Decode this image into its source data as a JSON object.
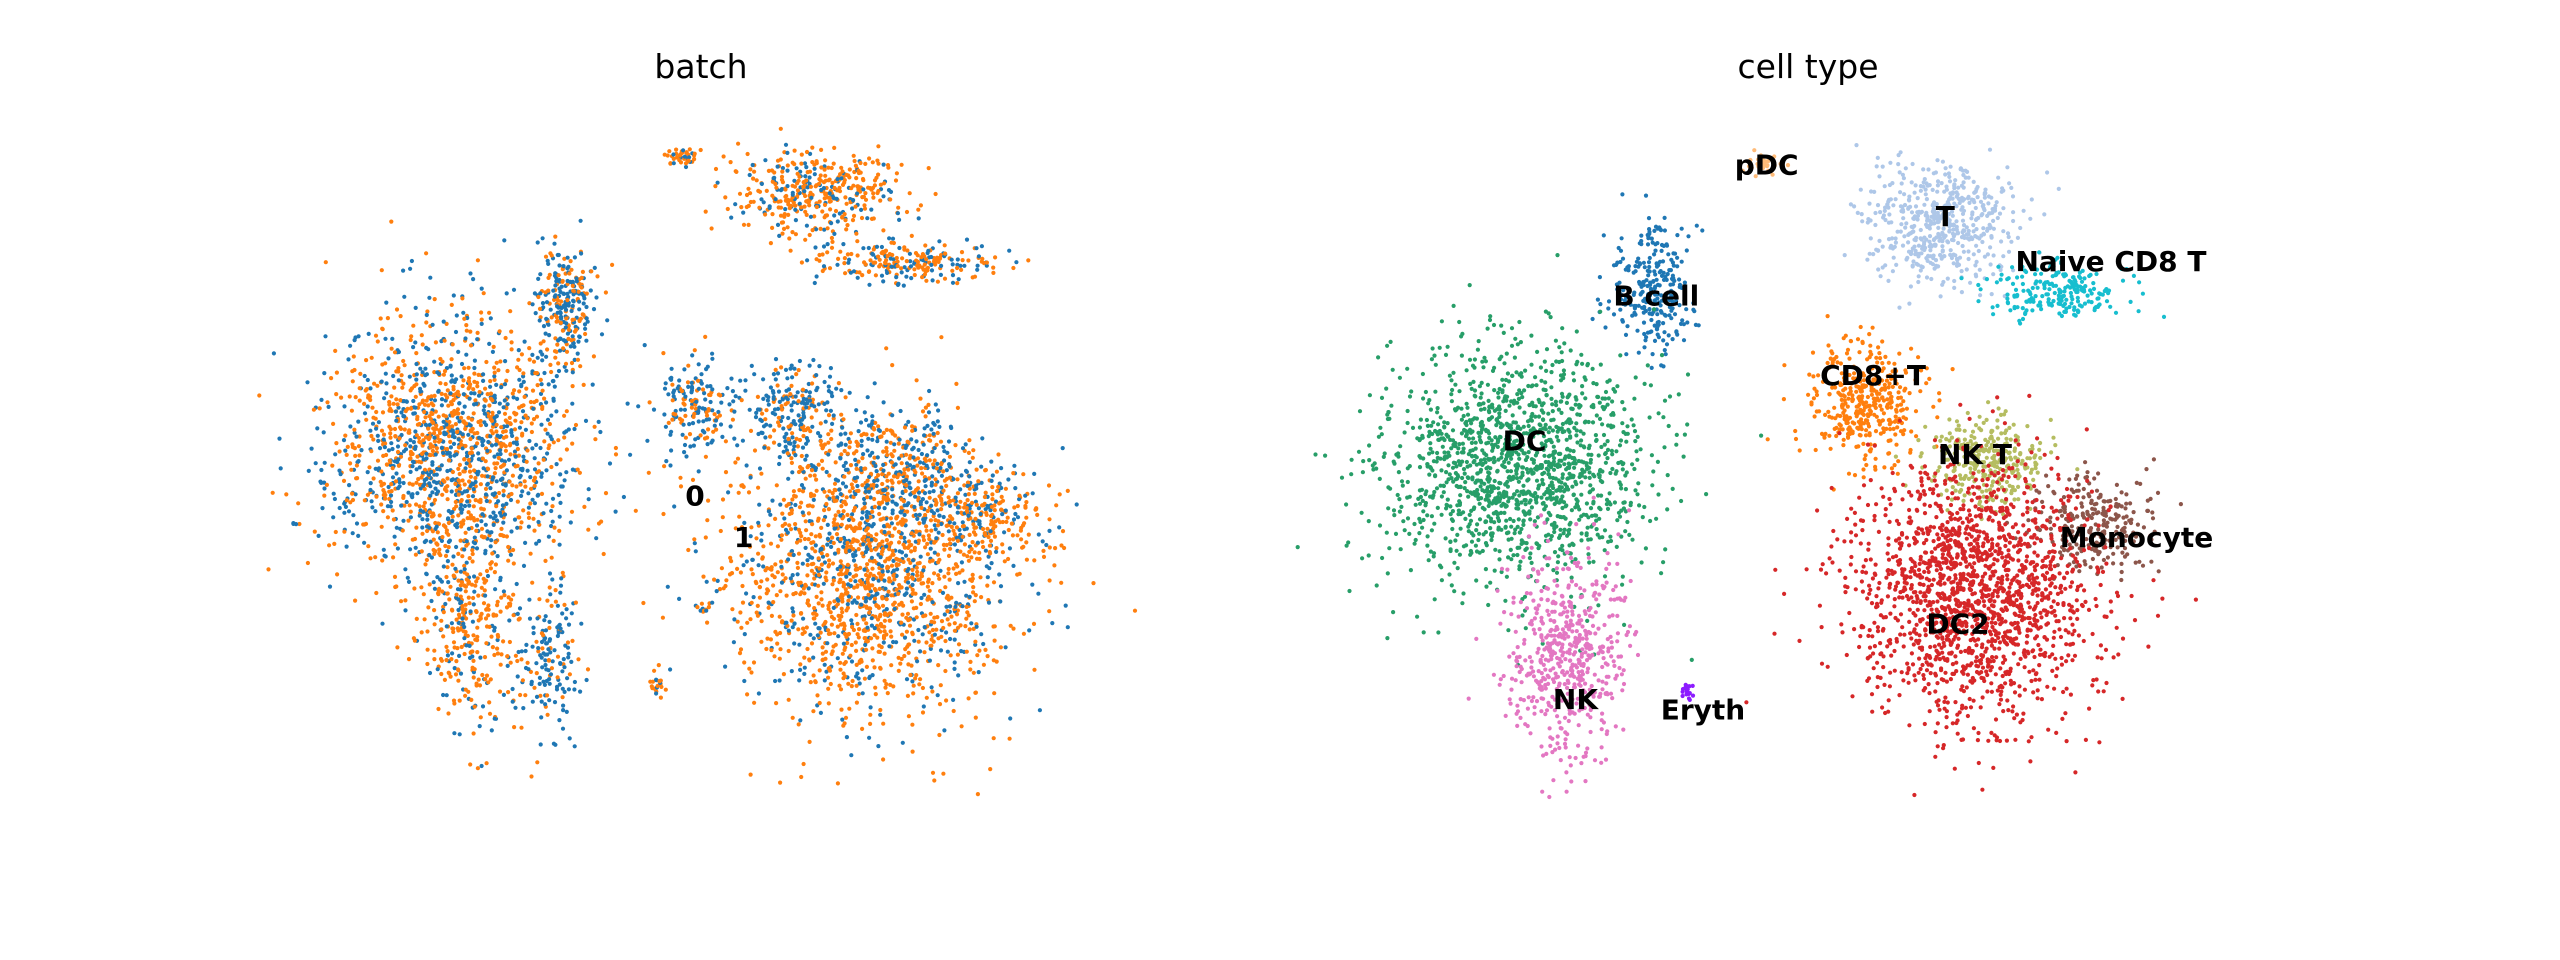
{
  "chart_data": [
    {
      "type": "scatter",
      "title": "batch",
      "xlabel": "",
      "ylabel": "",
      "axes_visible": false,
      "grid": false,
      "legend": "on data",
      "xlim": [
        0,
        10
      ],
      "ylim": [
        0,
        10
      ],
      "series": [
        {
          "name": "0",
          "color": "#1f77b4"
        },
        {
          "name": "1",
          "color": "#ff7f0e"
        }
      ],
      "labels": [
        {
          "text": "0",
          "x": 5.0,
          "y": 4.6
        },
        {
          "text": "1",
          "x": 5.6,
          "y": 4.0
        }
      ],
      "clusters": [
        {
          "x": 2.0,
          "y": 5.3,
          "sx": 0.85,
          "sy": 1.05,
          "n": 1600,
          "mix": 0.55
        },
        {
          "x": 3.4,
          "y": 7.4,
          "sx": 0.22,
          "sy": 0.5,
          "n": 260,
          "mix": 0.4
        },
        {
          "x": 2.2,
          "y": 2.7,
          "sx": 0.35,
          "sy": 0.9,
          "n": 320,
          "mix": 0.75
        },
        {
          "x": 3.2,
          "y": 2.2,
          "sx": 0.2,
          "sy": 0.6,
          "n": 160,
          "mix": 0.25
        },
        {
          "x": 6.5,
          "y": 9.0,
          "sx": 0.55,
          "sy": 0.35,
          "n": 420,
          "mix": 0.7
        },
        {
          "x": 7.7,
          "y": 8.0,
          "sx": 0.6,
          "sy": 0.18,
          "n": 220,
          "mix": 0.6
        },
        {
          "x": 4.85,
          "y": 9.55,
          "sx": 0.12,
          "sy": 0.06,
          "n": 40,
          "mix": 0.8
        },
        {
          "x": 5.0,
          "y": 5.9,
          "sx": 0.25,
          "sy": 0.35,
          "n": 170,
          "mix": 0.35
        },
        {
          "x": 6.2,
          "y": 5.8,
          "sx": 0.35,
          "sy": 0.45,
          "n": 230,
          "mix": 0.3
        },
        {
          "x": 7.2,
          "y": 3.5,
          "sx": 0.95,
          "sy": 1.1,
          "n": 1700,
          "mix": 0.7
        },
        {
          "x": 7.5,
          "y": 5.0,
          "sx": 0.5,
          "sy": 0.5,
          "n": 320,
          "mix": 0.4
        },
        {
          "x": 8.6,
          "y": 4.4,
          "sx": 0.45,
          "sy": 0.35,
          "n": 200,
          "mix": 0.65
        },
        {
          "x": 4.55,
          "y": 1.9,
          "sx": 0.05,
          "sy": 0.12,
          "n": 25,
          "mix": 0.9
        },
        {
          "x": 5.1,
          "y": 3.0,
          "sx": 0.04,
          "sy": 0.04,
          "n": 12,
          "mix": 0.4
        }
      ]
    },
    {
      "type": "scatter",
      "title": "cell type",
      "xlabel": "",
      "ylabel": "",
      "axes_visible": false,
      "grid": false,
      "legend": "on data",
      "xlim": [
        0,
        10
      ],
      "ylim": [
        0,
        10
      ],
      "series": [
        {
          "name": "B cell",
          "color": "#1f77b4",
          "x": 3.2,
          "y": 7.6,
          "sx": 0.3,
          "sy": 0.5,
          "n": 280
        },
        {
          "name": "DC",
          "color": "#279e68",
          "x": 1.6,
          "y": 5.1,
          "sx": 0.85,
          "sy": 0.95,
          "n": 1500
        },
        {
          "name": "NK",
          "color": "#e377c2",
          "x": 2.2,
          "y": 2.3,
          "sx": 0.38,
          "sy": 0.85,
          "n": 550
        },
        {
          "name": "Eryth",
          "color": "#8c1cff",
          "x": 3.6,
          "y": 1.8,
          "sx": 0.05,
          "sy": 0.08,
          "n": 20
        },
        {
          "name": "pDC",
          "color": "#ffbb78",
          "x": 4.5,
          "y": 9.4,
          "sx": 0.13,
          "sy": 0.08,
          "n": 35
        },
        {
          "name": "T",
          "color": "#aec7e8",
          "x": 6.6,
          "y": 8.6,
          "sx": 0.5,
          "sy": 0.5,
          "n": 520
        },
        {
          "name": "Naive CD8 T",
          "color": "#17becf",
          "x": 8.0,
          "y": 7.6,
          "sx": 0.45,
          "sy": 0.22,
          "n": 220
        },
        {
          "name": "CD8+T",
          "color": "#ff7f0e",
          "x": 5.7,
          "y": 6.0,
          "sx": 0.35,
          "sy": 0.5,
          "n": 400
        },
        {
          "name": "NK T",
          "color": "#b5bd61",
          "x": 7.1,
          "y": 5.1,
          "sx": 0.38,
          "sy": 0.35,
          "n": 300
        },
        {
          "name": "Monocyte",
          "color": "#8c564b",
          "x": 8.4,
          "y": 4.2,
          "sx": 0.4,
          "sy": 0.4,
          "n": 260
        },
        {
          "name": "DC2",
          "color": "#d62728",
          "x": 7.0,
          "y": 3.2,
          "sx": 0.78,
          "sy": 1.05,
          "n": 1700
        }
      ],
      "labels": [
        {
          "text": "pDC",
          "x": 4.55,
          "y": 9.4
        },
        {
          "text": "T",
          "x": 6.65,
          "y": 8.65
        },
        {
          "text": "Naive CD8 T",
          "x": 8.6,
          "y": 8.0
        },
        {
          "text": "B cell",
          "x": 3.25,
          "y": 7.5
        },
        {
          "text": "CD8+T",
          "x": 5.8,
          "y": 6.35
        },
        {
          "text": "DC",
          "x": 1.7,
          "y": 5.4
        },
        {
          "text": "NK T",
          "x": 7.0,
          "y": 5.2
        },
        {
          "text": "Monocyte",
          "x": 8.9,
          "y": 4.0
        },
        {
          "text": "DC2",
          "x": 6.8,
          "y": 2.75
        },
        {
          "text": "NK",
          "x": 2.3,
          "y": 1.65
        },
        {
          "text": "Eryth",
          "x": 3.8,
          "y": 1.5
        }
      ]
    }
  ]
}
